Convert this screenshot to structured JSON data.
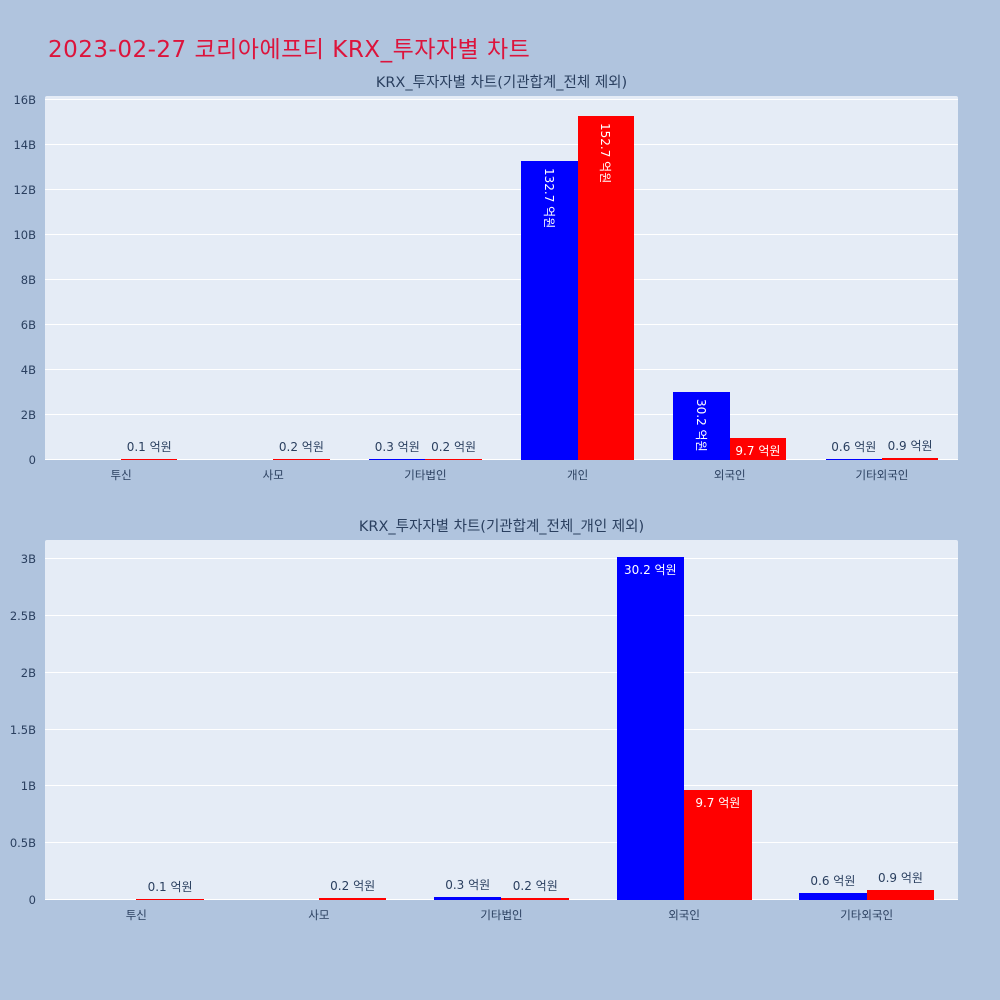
{
  "page": {
    "title": "2023-02-27 코리아에프티 KRX_투자자별 차트",
    "colors": {
      "background": "#b0c4de",
      "panel": "#e5ecf6",
      "gridline": "#ffffff",
      "title_accent": "#dc143c",
      "axis_text": "#2a3f5f"
    }
  },
  "chart_data": [
    {
      "type": "bar",
      "title": "KRX_투자자별 차트(기관합계_전체 제외)",
      "unit": "억원",
      "grid": true,
      "legend": false,
      "categories": [
        "투신",
        "사모",
        "기타법인",
        "개인",
        "외국인",
        "기타외국인"
      ],
      "ylim": [
        0,
        16.18
      ],
      "yticks": [
        {
          "v": 0,
          "label": "0"
        },
        {
          "v": 2,
          "label": "2B"
        },
        {
          "v": 4,
          "label": "4B"
        },
        {
          "v": 6,
          "label": "6B"
        },
        {
          "v": 8,
          "label": "8B"
        },
        {
          "v": 10,
          "label": "10B"
        },
        {
          "v": 12,
          "label": "12B"
        },
        {
          "v": 14,
          "label": "14B"
        },
        {
          "v": 16,
          "label": "16B"
        }
      ],
      "series": [
        {
          "color": "#0000ff",
          "values_b": [
            0,
            0,
            0.03,
            13.27,
            3.02,
            0.06
          ],
          "values_eokwon": [
            0,
            0,
            0.3,
            132.7,
            30.2,
            0.6
          ],
          "labels": [
            "",
            "",
            "0.3 억원",
            "132.7 억원",
            "30.2 억원",
            "0.6 억원"
          ],
          "label_style": [
            "none",
            "none",
            "out",
            "in-v",
            "in-v",
            "out"
          ]
        },
        {
          "color": "#ff0000",
          "values_b": [
            0.01,
            0.02,
            0.02,
            15.27,
            0.97,
            0.09
          ],
          "values_eokwon": [
            0.1,
            0.2,
            0.2,
            152.7,
            9.7,
            0.9
          ],
          "labels": [
            "0.1 억원",
            "0.2 억원",
            "0.2 억원",
            "152.7 억원",
            "9.7 억원",
            "0.9 억원"
          ],
          "label_style": [
            "out",
            "out",
            "out",
            "in-v",
            "in-h",
            "out"
          ]
        }
      ]
    },
    {
      "type": "bar",
      "title": "KRX_투자자별 차트(기관합계_전체_개인 제외)",
      "unit": "억원",
      "grid": true,
      "legend": false,
      "categories": [
        "투신",
        "사모",
        "기타법인",
        "외국인",
        "기타외국인"
      ],
      "ylim": [
        0,
        3.17
      ],
      "yticks": [
        {
          "v": 0,
          "label": "0"
        },
        {
          "v": 0.5,
          "label": "0.5B"
        },
        {
          "v": 1,
          "label": "1B"
        },
        {
          "v": 1.5,
          "label": "1.5B"
        },
        {
          "v": 2,
          "label": "2B"
        },
        {
          "v": 2.5,
          "label": "2.5B"
        },
        {
          "v": 3,
          "label": "3B"
        }
      ],
      "series": [
        {
          "color": "#0000ff",
          "values_b": [
            0,
            0,
            0.03,
            3.02,
            0.06
          ],
          "values_eokwon": [
            0,
            0,
            0.3,
            30.2,
            0.6
          ],
          "labels": [
            "",
            "",
            "0.3 억원",
            "30.2 억원",
            "0.6 억원"
          ],
          "label_style": [
            "none",
            "none",
            "out",
            "in-h",
            "out"
          ]
        },
        {
          "color": "#ff0000",
          "values_b": [
            0.01,
            0.02,
            0.02,
            0.97,
            0.09
          ],
          "values_eokwon": [
            0.1,
            0.2,
            0.2,
            9.7,
            0.9
          ],
          "labels": [
            "0.1 억원",
            "0.2 억원",
            "0.2 억원",
            "9.7 억원",
            "0.9 억원"
          ],
          "label_style": [
            "out",
            "out",
            "out",
            "in-h",
            "out"
          ]
        }
      ]
    }
  ]
}
